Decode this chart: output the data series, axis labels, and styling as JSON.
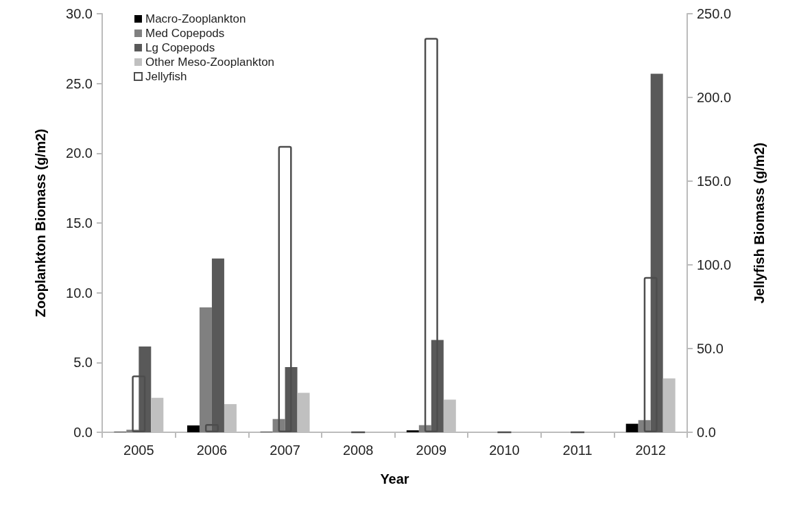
{
  "chart_data": {
    "type": "bar",
    "xlabel": "Year",
    "ylabel": "Zooplankton Biomass (g/m2)",
    "y2label": "Jellyfish Biomass (g/m2)",
    "categories": [
      "2005",
      "2006",
      "2007",
      "2008",
      "2009",
      "2010",
      "2011",
      "2012"
    ],
    "series": [
      {
        "name": "Macro-Zooplankton",
        "color": "#000000",
        "values": [
          0.03,
          0.49,
          0.03,
          0,
          0.14,
          0,
          0,
          0.61
        ]
      },
      {
        "name": "Med Copepods",
        "color": "#808080",
        "values": [
          0.18,
          8.95,
          0.95,
          0,
          0.51,
          0,
          0,
          0.87
        ]
      },
      {
        "name": "Lg Copepods",
        "color": "#595959",
        "values": [
          6.15,
          12.45,
          4.67,
          0,
          6.61,
          0,
          0,
          25.7
        ]
      },
      {
        "name": "Other Meso-Zooplankton",
        "color": "#c0c0c0",
        "values": [
          2.47,
          2.02,
          2.83,
          0,
          2.34,
          0,
          0,
          3.86
        ]
      },
      {
        "name": "Jellyfish",
        "color": "#4d4d4d",
        "axis": "y2",
        "values": [
          33.9,
          4.9,
          171,
          0,
          235.6,
          0,
          0,
          92.7
        ]
      }
    ],
    "ylim": [
      0,
      30
    ],
    "yticks": [
      {
        "value": 0,
        "label": "0.0"
      },
      {
        "value": 5,
        "label": "5.0"
      },
      {
        "value": 10,
        "label": "10.0"
      },
      {
        "value": 15,
        "label": "15.0"
      },
      {
        "value": 20,
        "label": "20.0"
      },
      {
        "value": 25,
        "label": "25.0"
      },
      {
        "value": 30,
        "label": "30.0"
      }
    ],
    "y2lim": [
      0,
      250
    ],
    "y2ticks": [
      {
        "value": 0,
        "label": "0.0"
      },
      {
        "value": 50,
        "label": "50.0"
      },
      {
        "value": 100,
        "label": "100.0"
      },
      {
        "value": 150,
        "label": "150.0"
      },
      {
        "value": 200,
        "label": "200.0"
      },
      {
        "value": 250,
        "label": "250.0"
      }
    ],
    "grid": false,
    "legend": "top left"
  }
}
